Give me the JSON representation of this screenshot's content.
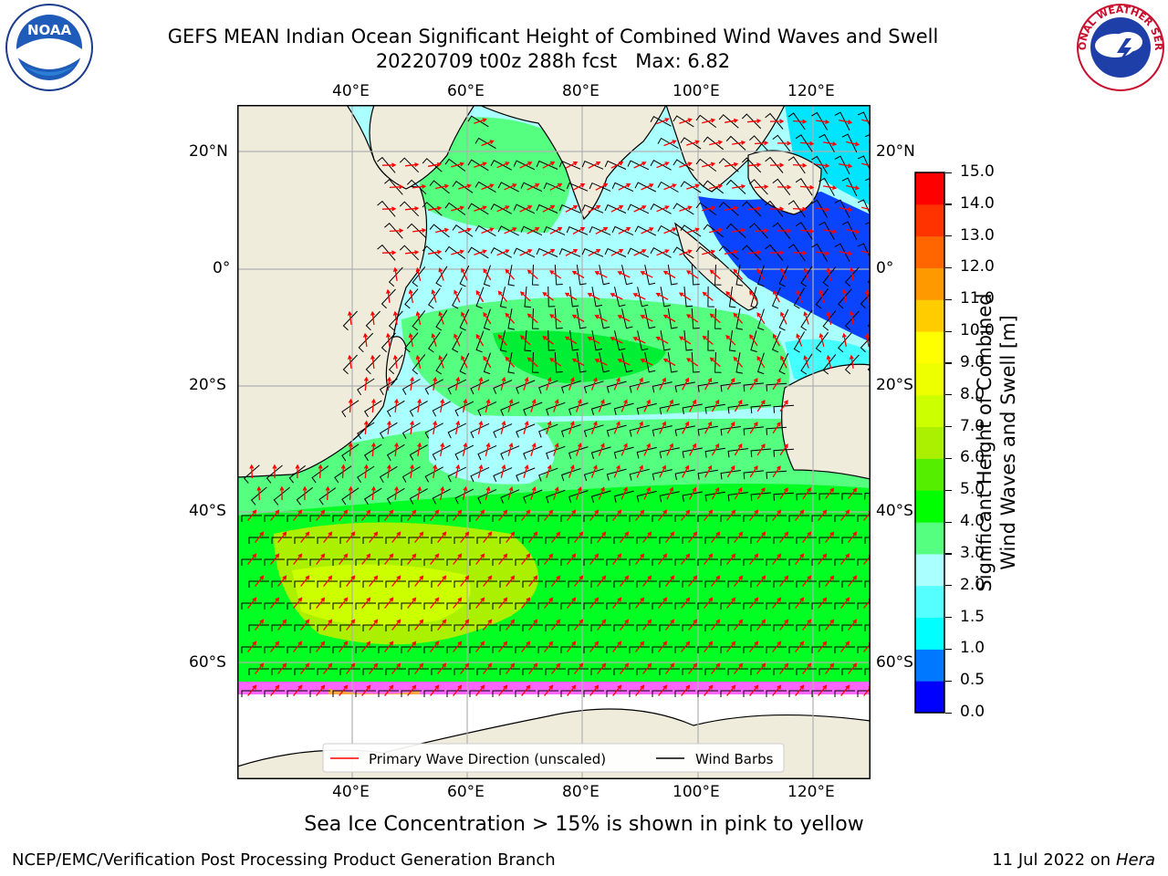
{
  "title_line1": "GEFS MEAN Indian Ocean Significant Height of Combined Wind Waves and Swell",
  "title_line2": "20220709 t00z 288h fcst   Max: 6.82",
  "logos": {
    "left": "NOAA",
    "right": "NATIONAL WEATHER SERVICE"
  },
  "map": {
    "lon_labels": [
      "40°E",
      "60°E",
      "80°E",
      "100°E",
      "120°E"
    ],
    "lat_labels_left": [
      "20°N",
      "0°",
      "20°S",
      "40°S",
      "60°S"
    ],
    "lat_labels_right": [
      "20°N",
      "0°",
      "20°S",
      "40°S",
      "60°S"
    ],
    "legend": {
      "wave_direction": "Primary Wave Direction (unscaled)",
      "wind_barbs": "Wind Barbs",
      "wave_direction_color": "#ff0000",
      "wind_barbs_color": "#000000"
    },
    "land_color": "#efecdc",
    "ice_color": "#ffffff"
  },
  "colorbar": {
    "label_line1": "Significant Height of Combined",
    "label_line2": "Wind Waves and Swell [m]",
    "ticks": [
      "0.0",
      "0.5",
      "1.0",
      "1.5",
      "2.0",
      "3.0",
      "4.0",
      "5.0",
      "6.0",
      "7.0",
      "8.0",
      "9.0",
      "10.0",
      "11.0",
      "12.0",
      "13.0",
      "14.0",
      "15.0"
    ],
    "colors": [
      "#0000ff",
      "#0078ff",
      "#00ffff",
      "#55ffff",
      "#aaffff",
      "#55ff80",
      "#00ff00",
      "#55ee00",
      "#aaf000",
      "#ccff00",
      "#eeff00",
      "#ffff00",
      "#ffcc00",
      "#ff9900",
      "#ff6600",
      "#ff3300",
      "#ff0000"
    ]
  },
  "footer": {
    "note": "Sea Ice Concentration > 15% is shown in pink to yellow",
    "branch": "NCEP/EMC/Verification Post Processing Product Generation Branch",
    "date": "11 Jul 2022 on",
    "machine": "Hera"
  }
}
